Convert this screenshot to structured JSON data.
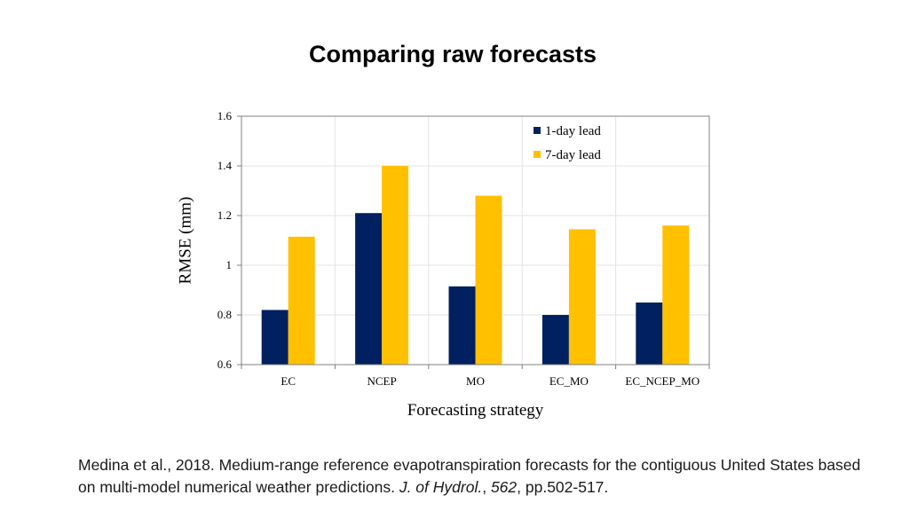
{
  "page": {
    "title": "Comparing raw forecasts"
  },
  "chart_data": {
    "type": "bar",
    "categories": [
      "EC",
      "NCEP",
      "MO",
      "EC_MO",
      "EC_NCEP_MO"
    ],
    "series": [
      {
        "name": "1-day lead",
        "color": "#002060",
        "values": [
          0.82,
          1.21,
          0.915,
          0.8,
          0.85
        ]
      },
      {
        "name": "7-day lead",
        "color": "#FFC000",
        "values": [
          1.115,
          1.4,
          1.28,
          1.145,
          1.16
        ]
      }
    ],
    "xlabel": "Forecasting strategy",
    "ylabel": "RMSE (mm)",
    "ylim": [
      0.6,
      1.6
    ],
    "yticks": [
      0.6,
      0.8,
      1,
      1.2,
      1.4,
      1.6
    ],
    "ytick_labels": [
      "0.6",
      "0.8",
      "1",
      "1.2",
      "1.4",
      "1.6"
    ],
    "grid": true,
    "legend": "top-right"
  },
  "citation": {
    "part1": "Medina et al., 2018. Medium-range reference evapotranspiration forecasts for the contiguous United States based on multi-model numerical weather predictions. ",
    "journal": "J. of Hydrol.",
    "sep": ", ",
    "volume": "562",
    "pages": ", pp.502-517."
  }
}
